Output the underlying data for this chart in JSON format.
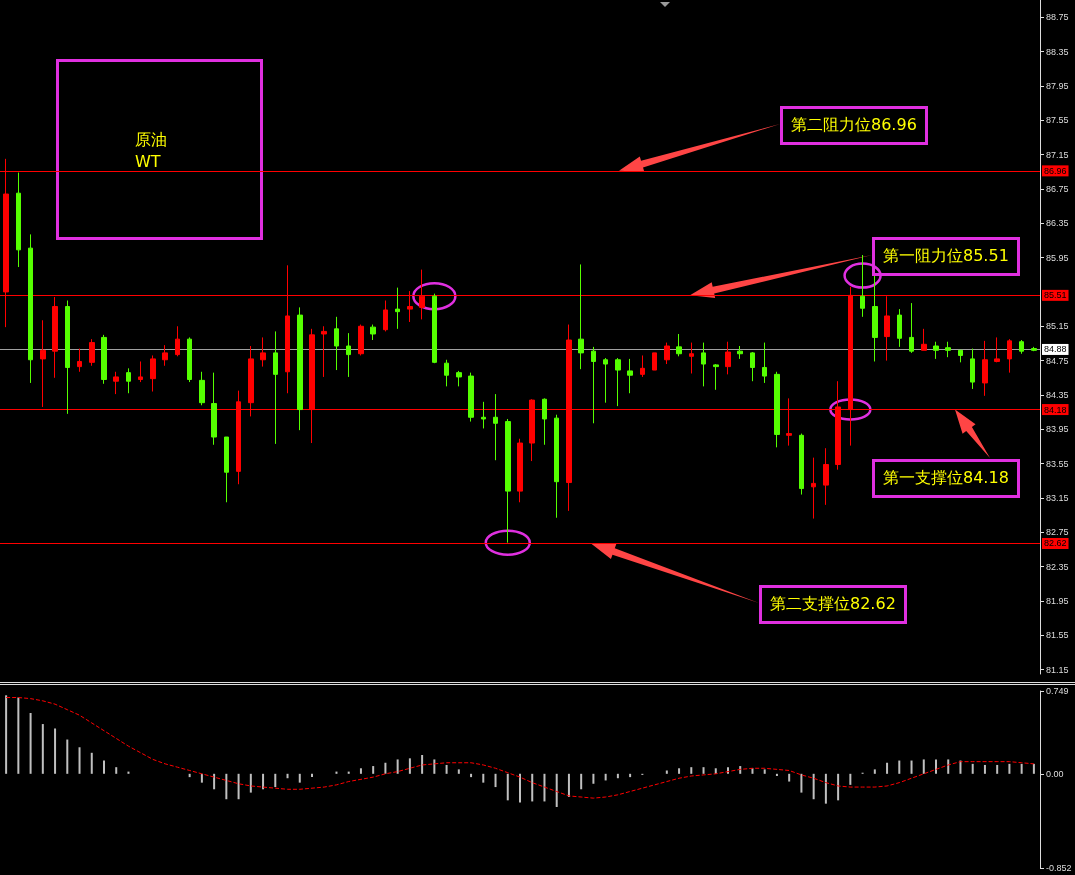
{
  "chart_data": [
    {
      "type": "candlestick",
      "categories": [
        null,
        null,
        null,
        null,
        null,
        null,
        null,
        null,
        null,
        null,
        null,
        null,
        null,
        null,
        null,
        null,
        null,
        null,
        null,
        null,
        null,
        null,
        null,
        null,
        null,
        null,
        null,
        null,
        null,
        null,
        null,
        null,
        null,
        null,
        null,
        null,
        null,
        null,
        null,
        null,
        null,
        null,
        null,
        null,
        null,
        null,
        null,
        null,
        null,
        null,
        null,
        null,
        null,
        null,
        null,
        null,
        null,
        null,
        null,
        null,
        null,
        null,
        null,
        null,
        null,
        null,
        null,
        null,
        null,
        null,
        null,
        null,
        null,
        null,
        null,
        null,
        null,
        null,
        null,
        null,
        null,
        null,
        null,
        null,
        null
      ],
      "ohlc": [
        [
          85.55,
          87.1,
          85.14,
          86.69
        ],
        [
          86.7,
          86.94,
          85.84,
          86.04
        ],
        [
          86.06,
          86.22,
          84.49,
          84.76
        ],
        [
          84.77,
          85.22,
          84.21,
          84.87
        ],
        [
          84.86,
          85.49,
          84.55,
          85.38
        ],
        [
          85.38,
          85.45,
          84.13,
          84.67
        ],
        [
          84.68,
          84.89,
          84.62,
          84.74
        ],
        [
          84.73,
          85.0,
          84.69,
          84.96
        ],
        [
          85.02,
          85.05,
          84.48,
          84.53
        ],
        [
          84.51,
          84.62,
          84.36,
          84.56
        ],
        [
          84.61,
          84.66,
          84.37,
          84.51
        ],
        [
          84.53,
          84.74,
          84.5,
          84.56
        ],
        [
          84.54,
          84.81,
          84.39,
          84.77
        ],
        [
          84.76,
          84.93,
          84.69,
          84.84
        ],
        [
          84.82,
          85.15,
          84.8,
          85.0
        ],
        [
          85.0,
          85.02,
          84.5,
          84.53
        ],
        [
          84.52,
          84.62,
          84.23,
          84.26
        ],
        [
          84.25,
          84.61,
          83.77,
          83.86
        ],
        [
          83.86,
          83.86,
          83.1,
          83.45
        ],
        [
          83.46,
          84.4,
          83.31,
          84.27
        ],
        [
          84.26,
          84.92,
          84.1,
          84.77
        ],
        [
          84.76,
          85.02,
          84.68,
          84.84
        ],
        [
          84.84,
          85.09,
          83.78,
          84.59
        ],
        [
          84.62,
          85.86,
          84.37,
          85.27
        ],
        [
          85.28,
          85.37,
          83.94,
          84.18
        ],
        [
          84.18,
          85.12,
          83.79,
          85.05
        ],
        [
          85.06,
          85.15,
          84.56,
          85.09
        ],
        [
          85.12,
          85.26,
          84.64,
          84.92
        ],
        [
          84.92,
          85.07,
          84.56,
          84.82
        ],
        [
          84.83,
          85.17,
          84.81,
          85.15
        ],
        [
          85.14,
          85.17,
          84.99,
          85.06
        ],
        [
          85.11,
          85.45,
          85.09,
          85.34
        ],
        [
          85.35,
          85.6,
          85.12,
          85.32
        ],
        [
          85.35,
          85.56,
          85.2,
          85.38
        ],
        [
          85.37,
          85.81,
          85.23,
          85.5
        ],
        [
          85.5,
          85.53,
          84.72,
          84.73
        ],
        [
          84.72,
          84.76,
          84.45,
          84.58
        ],
        [
          84.61,
          84.63,
          84.45,
          84.56
        ],
        [
          84.57,
          84.61,
          84.04,
          84.09
        ],
        [
          84.09,
          84.27,
          83.96,
          84.07
        ],
        [
          84.09,
          84.36,
          83.59,
          84.02
        ],
        [
          84.04,
          84.07,
          82.63,
          83.23
        ],
        [
          83.23,
          83.84,
          83.1,
          83.79
        ],
        [
          83.79,
          84.3,
          83.58,
          84.29
        ],
        [
          84.3,
          84.31,
          83.77,
          84.07
        ],
        [
          84.08,
          84.12,
          82.92,
          83.34
        ],
        [
          83.33,
          85.17,
          83.0,
          84.99
        ],
        [
          85.0,
          85.87,
          84.65,
          84.84
        ],
        [
          84.86,
          84.91,
          84.02,
          84.74
        ],
        [
          84.76,
          84.78,
          84.26,
          84.71
        ],
        [
          84.76,
          84.78,
          84.22,
          84.64
        ],
        [
          84.63,
          84.77,
          84.37,
          84.58
        ],
        [
          84.59,
          84.81,
          84.56,
          84.66
        ],
        [
          84.64,
          84.84,
          84.64,
          84.84
        ],
        [
          84.76,
          84.96,
          84.71,
          84.92
        ],
        [
          84.91,
          85.06,
          84.8,
          84.83
        ],
        [
          84.8,
          84.96,
          84.6,
          84.83
        ],
        [
          84.84,
          84.96,
          84.45,
          84.71
        ],
        [
          84.7,
          84.71,
          84.41,
          84.68
        ],
        [
          84.68,
          84.97,
          84.59,
          84.85
        ],
        [
          84.86,
          84.92,
          84.77,
          84.83
        ],
        [
          84.84,
          84.85,
          84.51,
          84.67
        ],
        [
          84.67,
          84.96,
          84.49,
          84.57
        ],
        [
          84.59,
          84.62,
          83.74,
          83.89
        ],
        [
          83.88,
          84.31,
          83.76,
          83.9
        ],
        [
          83.88,
          83.9,
          83.19,
          83.26
        ],
        [
          83.28,
          83.62,
          82.91,
          83.32
        ],
        [
          83.3,
          83.73,
          83.07,
          83.54
        ],
        [
          83.54,
          84.51,
          83.48,
          84.21
        ],
        [
          84.18,
          85.61,
          83.76,
          85.51
        ],
        [
          85.5,
          85.98,
          85.26,
          85.36
        ],
        [
          85.38,
          85.74,
          84.74,
          85.02
        ],
        [
          85.03,
          85.5,
          84.75,
          85.27
        ],
        [
          85.28,
          85.35,
          84.91,
          85.01
        ],
        [
          85.02,
          85.42,
          84.84,
          84.86
        ],
        [
          84.87,
          85.12,
          84.87,
          84.94
        ],
        [
          84.92,
          84.97,
          84.77,
          84.87
        ],
        [
          84.9,
          84.97,
          84.79,
          84.87
        ],
        [
          84.87,
          84.87,
          84.73,
          84.81
        ],
        [
          84.77,
          84.89,
          84.42,
          84.5
        ],
        [
          84.49,
          84.98,
          84.34,
          84.76
        ],
        [
          84.74,
          85.02,
          84.73,
          84.77
        ],
        [
          84.77,
          85.0,
          84.61,
          84.98
        ],
        [
          84.97,
          84.99,
          84.83,
          84.86
        ],
        [
          84.89,
          84.91,
          84.86,
          84.87
        ]
      ],
      "colors": [
        "#ff0000",
        "#55ff00",
        "#55ff00",
        "#ff0000",
        "#ff0000",
        "#55ff00",
        "#ff0000",
        "#ff0000",
        "#55ff00",
        "#ff0000",
        "#55ff00",
        "#ff0000",
        "#ff0000",
        "#ff0000",
        "#ff0000",
        "#55ff00",
        "#55ff00",
        "#55ff00",
        "#55ff00",
        "#ff0000",
        "#ff0000",
        "#ff0000",
        "#55ff00",
        "#ff0000",
        "#55ff00",
        "#ff0000",
        "#ff0000",
        "#55ff00",
        "#55ff00",
        "#ff0000",
        "#55ff00",
        "#ff0000",
        "#55ff00",
        "#ff0000",
        "#ff0000",
        "#55ff00",
        "#55ff00",
        "#55ff00",
        "#55ff00",
        "#55ff00",
        "#55ff00",
        "#55ff00",
        "#ff0000",
        "#ff0000",
        "#55ff00",
        "#55ff00",
        "#ff0000",
        "#55ff00",
        "#55ff00",
        "#55ff00",
        "#55ff00",
        "#55ff00",
        "#ff0000",
        "#ff0000",
        "#ff0000",
        "#55ff00",
        "#ff0000",
        "#55ff00",
        "#55ff00",
        "#ff0000",
        "#55ff00",
        "#55ff00",
        "#55ff00",
        "#55ff00",
        "#ff0000",
        "#55ff00",
        "#ff0000",
        "#ff0000",
        "#ff0000",
        "#ff0000",
        "#55ff00",
        "#55ff00",
        "#ff0000",
        "#55ff00",
        "#55ff00",
        "#ff0000",
        "#55ff00",
        "#55ff00",
        "#55ff00",
        "#55ff00",
        "#ff0000",
        "#ff0000",
        "#ff0000",
        "#55ff00",
        "#55ff00"
      ],
      "ylim": [
        81.1,
        88.95
      ],
      "yticks": [
        81.15,
        81.55,
        81.95,
        82.35,
        82.75,
        83.15,
        83.55,
        83.95,
        84.35,
        84.75,
        85.15,
        85.95,
        86.35,
        86.75,
        87.15,
        87.55,
        87.95,
        88.35,
        88.75
      ],
      "ref_lines": [
        {
          "axis": "y",
          "value": 86.96,
          "label": "86.96",
          "color": "#ff0000"
        },
        {
          "axis": "y",
          "value": 85.51,
          "label": "85.51",
          "color": "#ff0000"
        },
        {
          "axis": "y",
          "value": 84.18,
          "label": "84.18",
          "color": "#ff0000"
        },
        {
          "axis": "y",
          "value": 82.62,
          "label": "82.62",
          "color": "#ff0000"
        },
        {
          "axis": "y",
          "value": 84.88,
          "label": "84.88",
          "color": "#a0a0a0"
        }
      ],
      "annotations": [
        "原油",
        "WT",
        "第二阻力位86.96",
        "第一阻力位85.51",
        "第一支撑位84.18",
        "第二支撑位82.62"
      ]
    },
    {
      "type": "bar",
      "categories": [
        null,
        null,
        null,
        null,
        null,
        null,
        null,
        null,
        null,
        null,
        null,
        null,
        null,
        null,
        null,
        null,
        null,
        null,
        null,
        null,
        null,
        null,
        null,
        null,
        null,
        null,
        null,
        null,
        null,
        null,
        null,
        null,
        null,
        null,
        null,
        null,
        null,
        null,
        null,
        null,
        null,
        null,
        null,
        null,
        null,
        null,
        null,
        null,
        null,
        null,
        null,
        null,
        null,
        null,
        null,
        null,
        null,
        null,
        null,
        null,
        null,
        null,
        null,
        null,
        null,
        null,
        null,
        null,
        null,
        null,
        null,
        null,
        null,
        null,
        null,
        null,
        null,
        null,
        null,
        null,
        null,
        null,
        null,
        null,
        null
      ],
      "series": [
        {
          "type": "bar",
          "color": "#c0c0c0",
          "values": [
            0.71,
            0.69,
            0.55,
            0.45,
            0.41,
            0.31,
            0.24,
            0.19,
            0.12,
            0.06,
            0.02,
            0.0,
            0.0,
            0.0,
            0.0,
            -0.03,
            -0.08,
            -0.14,
            -0.23,
            -0.23,
            -0.17,
            -0.14,
            -0.12,
            -0.04,
            -0.08,
            -0.03,
            0.0,
            0.02,
            0.02,
            0.05,
            0.07,
            0.1,
            0.13,
            0.14,
            0.17,
            0.13,
            0.08,
            0.04,
            -0.03,
            -0.08,
            -0.12,
            -0.24,
            -0.26,
            -0.25,
            -0.25,
            -0.3,
            -0.21,
            -0.14,
            -0.09,
            -0.06,
            -0.04,
            -0.03,
            -0.01,
            0.0,
            0.03,
            0.05,
            0.06,
            0.06,
            0.05,
            0.06,
            0.07,
            0.05,
            0.04,
            -0.02,
            -0.07,
            -0.17,
            -0.23,
            -0.27,
            -0.24,
            -0.1,
            0.01,
            0.04,
            0.1,
            0.12,
            0.12,
            0.13,
            0.13,
            0.13,
            0.12,
            0.09,
            0.08,
            0.08,
            0.09,
            0.09,
            0.09
          ]
        },
        {
          "type": "line",
          "color": "#ff0000",
          "line_style": "dashed",
          "marker": "none",
          "values": [
            0.69,
            0.69,
            0.68,
            0.66,
            0.63,
            0.58,
            0.53,
            0.46,
            0.39,
            0.32,
            0.25,
            0.19,
            0.13,
            0.09,
            0.06,
            0.03,
            0.0,
            -0.03,
            -0.06,
            -0.09,
            -0.11,
            -0.12,
            -0.13,
            -0.14,
            -0.14,
            -0.13,
            -0.12,
            -0.1,
            -0.07,
            -0.05,
            -0.03,
            0.0,
            0.02,
            0.05,
            0.08,
            0.09,
            0.1,
            0.1,
            0.1,
            0.08,
            0.05,
            0.01,
            -0.03,
            -0.08,
            -0.12,
            -0.16,
            -0.2,
            -0.21,
            -0.22,
            -0.21,
            -0.19,
            -0.16,
            -0.13,
            -0.1,
            -0.07,
            -0.04,
            -0.02,
            -0.01,
            0.0,
            0.02,
            0.04,
            0.05,
            0.05,
            0.04,
            0.03,
            -0.01,
            -0.04,
            -0.08,
            -0.11,
            -0.12,
            -0.12,
            -0.12,
            -0.11,
            -0.08,
            -0.04,
            0.0,
            0.04,
            0.08,
            0.11,
            0.11,
            0.11,
            0.11,
            0.11,
            0.1,
            0.09
          ]
        }
      ],
      "ylim": [
        -0.852,
        0.749
      ],
      "yticks": [
        0.749,
        {
          "value": 0,
          "label": "0.00"
        },
        -0.852
      ]
    }
  ]
}
